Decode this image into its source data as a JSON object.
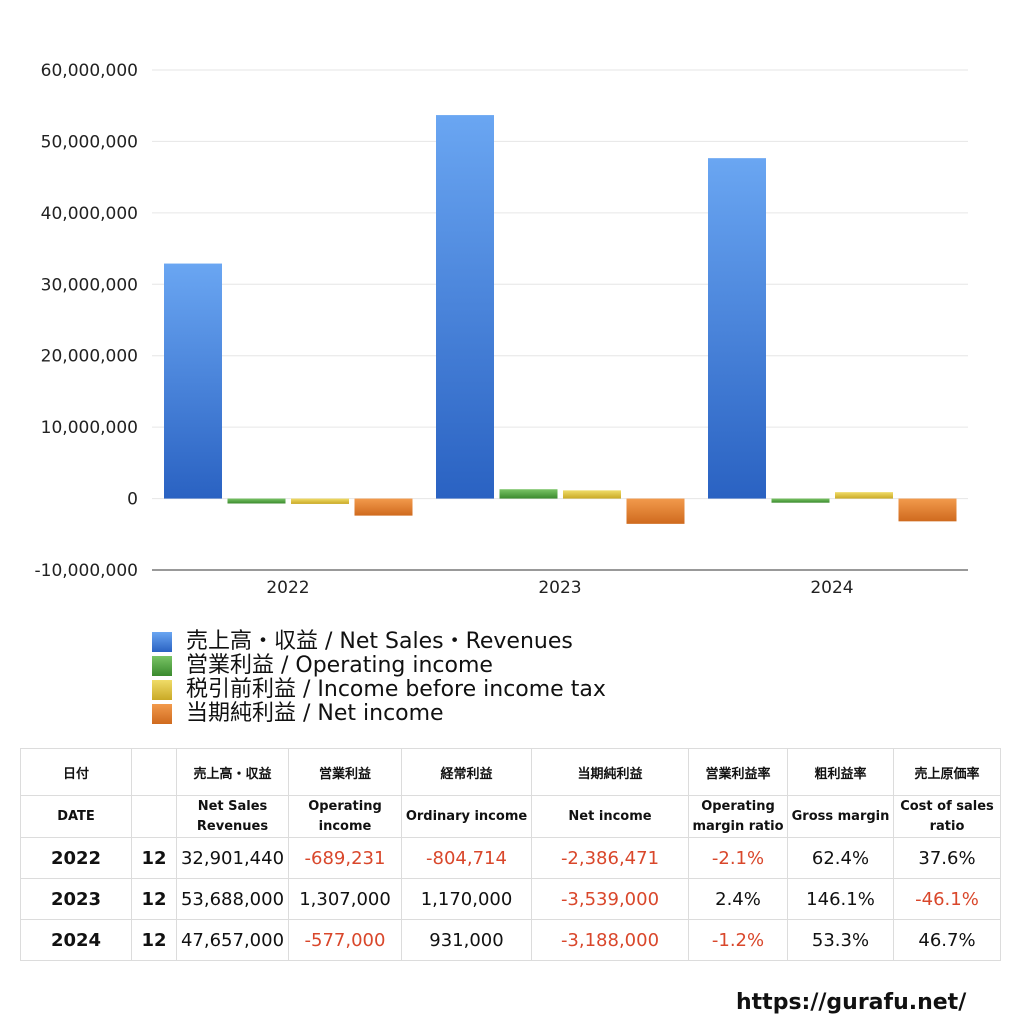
{
  "chart_data": {
    "type": "bar",
    "categories": [
      "2022",
      "2023",
      "2024"
    ],
    "ylim": [
      -10000000,
      60000000
    ],
    "yticks": [
      "60,000,000",
      "50,000,000",
      "40,000,000",
      "30,000,000",
      "20,000,000",
      "10,000,000",
      "0",
      "-10,000,000"
    ],
    "ytick_values": [
      60000000,
      50000000,
      40000000,
      30000000,
      20000000,
      10000000,
      0,
      -10000000
    ],
    "grid": true,
    "legend_position": "bottom",
    "series": [
      {
        "name": "売上高・収益 / Net Sales・Revenues",
        "color": "#3a78d8",
        "values": [
          32901440,
          53688000,
          47657000
        ]
      },
      {
        "name": "営業利益 / Operating income",
        "color": "#4aa03c",
        "values": [
          -689231,
          1307000,
          -577000
        ]
      },
      {
        "name": "税引前利益 / Income before income tax",
        "color": "#dcc23a",
        "values": [
          -750000,
          1150000,
          900000
        ]
      },
      {
        "name": "当期純利益 / Net income",
        "color": "#e07c2c",
        "values": [
          -2386471,
          -3539000,
          -3188000
        ]
      }
    ]
  },
  "table": {
    "headers_ja": [
      "日付",
      "",
      "売上高・収益",
      "営業利益",
      "経常利益",
      "当期純利益",
      "営業利益率",
      "粗利益率",
      "売上原価率"
    ],
    "headers_en": [
      "DATE",
      "",
      "Net Sales Revenues",
      "Operating income",
      "Ordinary income",
      "Net income",
      "Operating margin ratio",
      "Gross margin",
      "Cost of sales ratio"
    ],
    "rows": [
      {
        "year": "2022",
        "month": "12",
        "sales": "32,901,440",
        "operating": "-689,231",
        "ordinary": "-804,714",
        "net": "-2,386,471",
        "op_margin": "-2.1%",
        "gross_margin": "62.4%",
        "cost_ratio": "37.6%"
      },
      {
        "year": "2023",
        "month": "12",
        "sales": "53,688,000",
        "operating": "1,307,000",
        "ordinary": "1,170,000",
        "net": "-3,539,000",
        "op_margin": "2.4%",
        "gross_margin": "146.1%",
        "cost_ratio": "-46.1%"
      },
      {
        "year": "2024",
        "month": "12",
        "sales": "47,657,000",
        "operating": "-577,000",
        "ordinary": "931,000",
        "net": "-3,188,000",
        "op_margin": "-1.2%",
        "gross_margin": "53.3%",
        "cost_ratio": "46.7%"
      }
    ],
    "negative_color": "#d9472b"
  },
  "footer": {
    "url": "https://gurafu.net/"
  }
}
